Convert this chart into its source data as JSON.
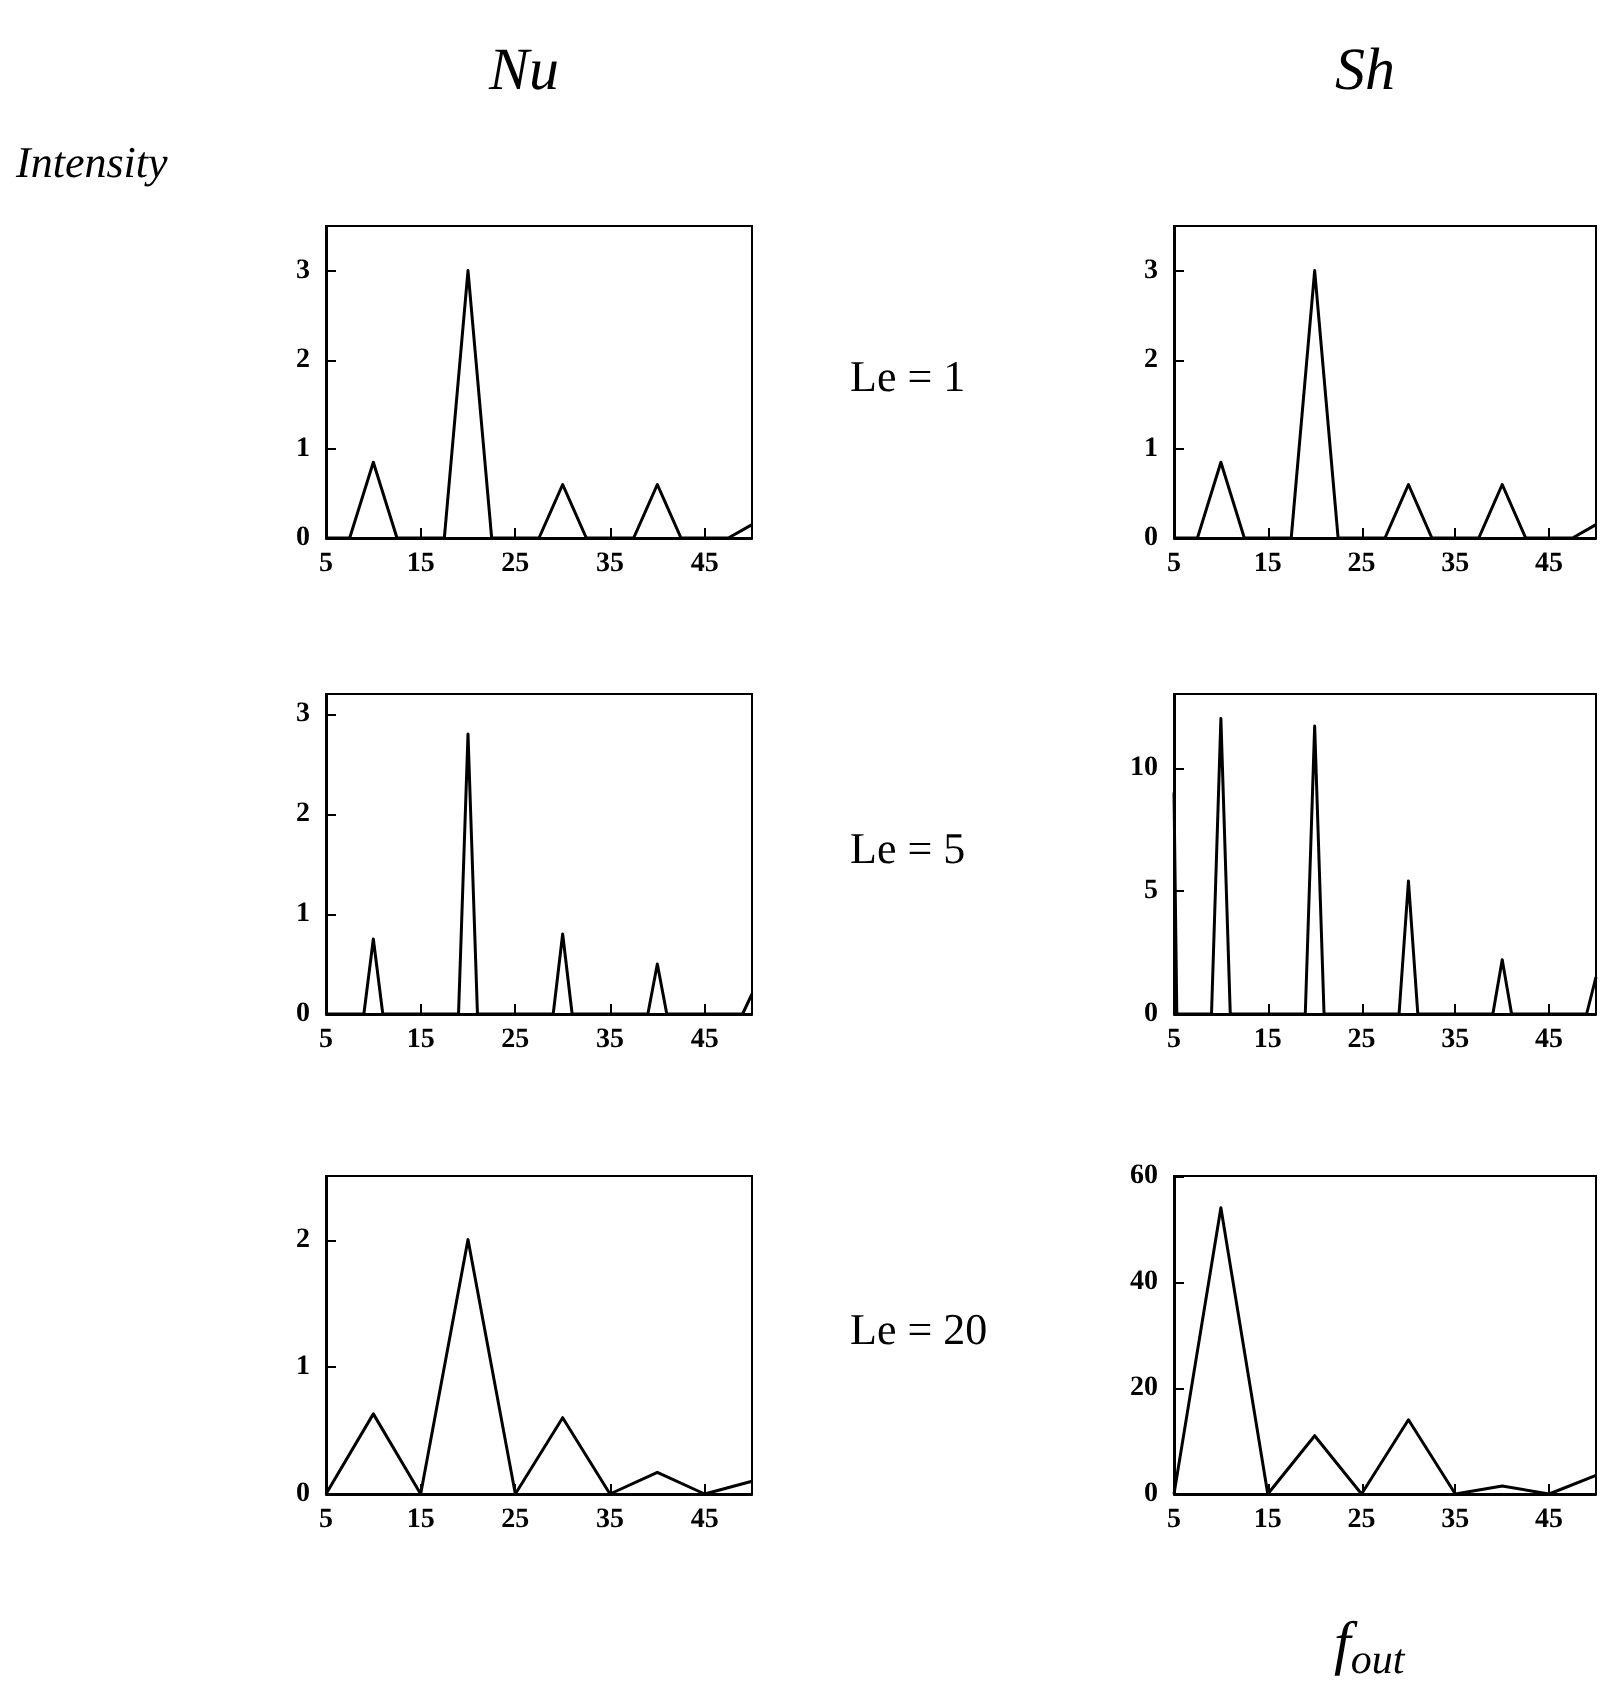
{
  "chart_data": [
    {
      "type": "line",
      "title": "Nu",
      "ylabel": "Intensity",
      "x": [
        5,
        7.5,
        10,
        12.5,
        17.5,
        20,
        22.5,
        27.5,
        30,
        32.5,
        37.5,
        40,
        42.5,
        47.5,
        50
      ],
      "series": [
        {
          "color": "#000000",
          "values": [
            0,
            0,
            0.85,
            0,
            0,
            3,
            0,
            0,
            0.6,
            0,
            0,
            0.6,
            0,
            0,
            0.15
          ]
        }
      ],
      "xlim": [
        5,
        50
      ],
      "xticks": [
        5,
        15,
        25,
        35,
        45
      ],
      "ylim": [
        0,
        3.5
      ],
      "yticks": [
        0,
        1,
        2,
        3
      ],
      "marker": "none",
      "line_style": "solid",
      "grid": false
    },
    {
      "type": "line",
      "title": "Sh",
      "annotations": [
        "Le = 1"
      ],
      "x": [
        5,
        7.5,
        10,
        12.5,
        17.5,
        20,
        22.5,
        27.5,
        30,
        32.5,
        37.5,
        40,
        42.5,
        47.5,
        50
      ],
      "series": [
        {
          "color": "#000000",
          "values": [
            0,
            0,
            0.85,
            0,
            0,
            3,
            0,
            0,
            0.6,
            0,
            0,
            0.6,
            0,
            0,
            0.15
          ]
        }
      ],
      "xlim": [
        5,
        50
      ],
      "xticks": [
        5,
        15,
        25,
        35,
        45
      ],
      "ylim": [
        0,
        3.5
      ],
      "yticks": [
        0,
        1,
        2,
        3
      ],
      "marker": "none",
      "line_style": "solid",
      "grid": false
    },
    {
      "type": "line",
      "x": [
        5,
        9,
        10,
        11,
        19,
        20,
        21,
        29,
        30,
        31,
        39,
        40,
        41,
        49,
        50
      ],
      "series": [
        {
          "color": "#000000",
          "values": [
            0,
            0,
            0.75,
            0,
            0,
            2.8,
            0,
            0,
            0.8,
            0,
            0,
            0.5,
            0,
            0,
            0.2
          ]
        }
      ],
      "xlim": [
        5,
        50
      ],
      "xticks": [
        5,
        15,
        25,
        35,
        45
      ],
      "ylim": [
        0,
        3.2
      ],
      "yticks": [
        0,
        1,
        2,
        3
      ],
      "marker": "none",
      "line_style": "solid",
      "grid": false
    },
    {
      "type": "line",
      "annotations": [
        "Le = 5"
      ],
      "x": [
        5,
        5.3,
        9,
        10,
        11,
        19,
        20,
        21,
        29,
        30,
        31,
        39,
        40,
        41,
        49,
        50
      ],
      "series": [
        {
          "color": "#000000",
          "values": [
            9,
            0,
            0,
            12,
            0,
            0,
            11.7,
            0,
            0,
            5.4,
            0,
            0,
            2.2,
            0,
            0,
            1.5
          ]
        }
      ],
      "xlim": [
        5,
        50
      ],
      "xticks": [
        5,
        15,
        25,
        35,
        45
      ],
      "ylim": [
        0,
        13
      ],
      "yticks": [
        0,
        5,
        10
      ],
      "marker": "none",
      "line_style": "solid",
      "grid": false
    },
    {
      "type": "line",
      "x": [
        5,
        10,
        15,
        20,
        25,
        30,
        35,
        40,
        45,
        50
      ],
      "series": [
        {
          "color": "#000000",
          "values": [
            0,
            0.63,
            0,
            2,
            0,
            0.6,
            0,
            0.17,
            0,
            0.1
          ]
        }
      ],
      "xlim": [
        5,
        50
      ],
      "xticks": [
        5,
        15,
        25,
        35,
        45
      ],
      "ylim": [
        0,
        2.5
      ],
      "yticks": [
        0,
        1,
        2
      ],
      "marker": "none",
      "line_style": "solid",
      "grid": false
    },
    {
      "type": "line",
      "xlabel": "f$_{out}$",
      "annotations": [
        "Le = 20"
      ],
      "x": [
        5,
        10,
        15,
        20,
        25,
        30,
        35,
        40,
        45,
        50
      ],
      "series": [
        {
          "color": "#000000",
          "values": [
            0,
            54,
            0,
            11,
            0,
            14,
            0,
            1.5,
            0,
            3.5
          ]
        }
      ],
      "xlim": [
        5,
        50
      ],
      "xticks": [
        5,
        15,
        25,
        35,
        45
      ],
      "ylim": [
        0,
        60
      ],
      "yticks": [
        0,
        20,
        40,
        60
      ],
      "marker": "none",
      "line_style": "solid",
      "grid": false
    }
  ]
}
